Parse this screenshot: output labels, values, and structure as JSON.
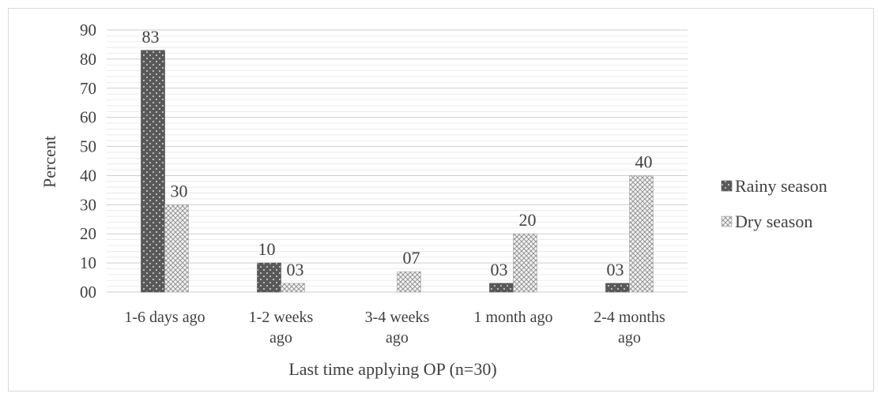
{
  "chart_data": {
    "type": "bar",
    "title": "",
    "xlabel": "Last time applying OP (n=30)",
    "ylabel": "Percent",
    "ylim": [
      0,
      90
    ],
    "yticks": [
      "00",
      "10",
      "20",
      "30",
      "40",
      "50",
      "60",
      "70",
      "80",
      "90"
    ],
    "categories": [
      [
        "1-6 days ago"
      ],
      [
        "1-2 weeks",
        "ago"
      ],
      [
        "3-4 weeks",
        "ago"
      ],
      [
        "1 month ago"
      ],
      [
        "2-4 months",
        "ago"
      ]
    ],
    "series": [
      {
        "name": "Rainy season",
        "values": [
          83,
          10,
          null,
          3,
          3
        ],
        "labels": [
          "83",
          "10",
          "",
          "03",
          "03"
        ],
        "color": "#595959",
        "pattern": "dotted"
      },
      {
        "name": "Dry season",
        "values": [
          30,
          3,
          7,
          20,
          40
        ],
        "labels": [
          "30",
          "03",
          "07",
          "20",
          "40"
        ],
        "color": "#d0d0d0",
        "pattern": "crosshatch"
      }
    ],
    "grid": true,
    "legend_position": "right"
  }
}
